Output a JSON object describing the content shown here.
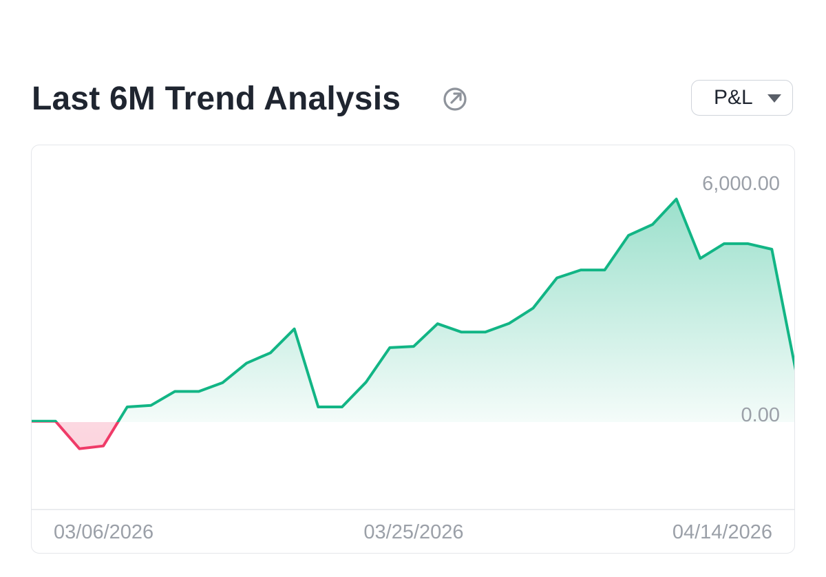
{
  "header": {
    "title": "Last 6M Trend Analysis",
    "title_icon": "external-link-icon",
    "select": {
      "selected": "P&L",
      "caret_icon": "caret-down-icon"
    }
  },
  "colors": {
    "positive": "#12b585",
    "negative": "#ef3b68",
    "title": "#1f2530",
    "tick": "#9ba0a8"
  },
  "chart_data": {
    "type": "area",
    "title": "Last 6M Trend Analysis",
    "xlabel": "",
    "ylabel": "",
    "ylim": [
      0,
      6000
    ],
    "y_ticks": [
      {
        "value": 6000,
        "label": "6,000.00"
      },
      {
        "value": 0,
        "label": "0.00"
      }
    ],
    "x_tick_labels": [
      "03/06/2026",
      "03/25/2026",
      "04/14/2026"
    ],
    "x_tick_indices": [
      1,
      16,
      31
    ],
    "grid": false,
    "legend": "none",
    "series": [
      {
        "values": [
          20,
          20,
          -670,
          -600,
          380,
          420,
          770,
          770,
          990,
          1480,
          1740,
          2340,
          380,
          380,
          1000,
          1870,
          1900,
          2470,
          2260,
          2260,
          2480,
          2860,
          3620,
          3820,
          3820,
          4690,
          4960,
          5600,
          4110,
          4480,
          4480,
          4340,
          1300
        ]
      }
    ]
  }
}
